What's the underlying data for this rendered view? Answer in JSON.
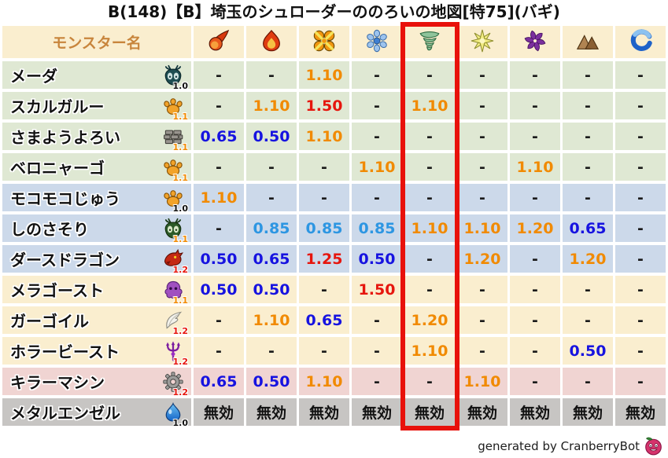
{
  "title": "B(148)【B】埼玉のシュローダーののろいの地図[特75](バギ)",
  "footer": {
    "text": "generated by CranberryBot",
    "icon": "cranberry-icon"
  },
  "colors": {
    "header_bg": "#faeecf",
    "header_text": "#c8853c",
    "row_green": "#dfe8d3",
    "row_blue": "#ccd9ea",
    "row_cream": "#faeecf",
    "row_pink": "#f0d4d2",
    "row_gray": "#c7c5c3",
    "value_dash": "#1a1a1a",
    "value_down": "#1713e0",
    "value_down_slight": "#2d96e2",
    "value_up": "#f18a00",
    "value_up_strong": "#e6160e",
    "immune": "#111111",
    "highlight_box": "#e8110b",
    "mult_10": "#111111",
    "mult_11": "#f18a00",
    "mult_12": "#e6160e"
  },
  "table": {
    "name_header": "モンスター名",
    "immune_label": "無効",
    "columns": [
      {
        "id": "fireball",
        "icon": "fireball-icon",
        "highlighted": false
      },
      {
        "id": "flame",
        "icon": "flame-icon",
        "highlighted": false
      },
      {
        "id": "explosion",
        "icon": "explosion-icon",
        "highlighted": false
      },
      {
        "id": "snowflake",
        "icon": "snowflake-icon",
        "highlighted": false
      },
      {
        "id": "tornado",
        "icon": "tornado-icon",
        "highlighted": true
      },
      {
        "id": "sparkle",
        "icon": "sparkle-icon",
        "highlighted": false
      },
      {
        "id": "pinwheel",
        "icon": "pinwheel-icon",
        "highlighted": false
      },
      {
        "id": "mountain",
        "icon": "mountain-icon",
        "highlighted": false
      },
      {
        "id": "wave",
        "icon": "wave-icon",
        "highlighted": false
      }
    ],
    "rows": [
      {
        "name": "メーダ",
        "icon": "meda-bug-icon",
        "multiplier": "1.0",
        "group": "green",
        "values": [
          "-",
          "-",
          "1.10",
          "-",
          "-",
          "-",
          "-",
          "-",
          "-"
        ]
      },
      {
        "name": "スカルガルー",
        "icon": "paw-icon",
        "multiplier": "1.1",
        "group": "green",
        "values": [
          "-",
          "1.10",
          "1.50",
          "-",
          "1.10",
          "-",
          "-",
          "-",
          "-"
        ]
      },
      {
        "name": "さまようよろい",
        "icon": "brick-icon",
        "multiplier": "1.1",
        "group": "green",
        "values": [
          "0.65",
          "0.50",
          "1.10",
          "-",
          "-",
          "-",
          "-",
          "-",
          "-"
        ]
      },
      {
        "name": "ベロニャーゴ",
        "icon": "paw-icon",
        "multiplier": "1.1",
        "group": "green",
        "values": [
          "-",
          "-",
          "-",
          "1.10",
          "-",
          "-",
          "1.10",
          "-",
          "-"
        ]
      },
      {
        "name": "モコモコじゅう",
        "icon": "paw-icon",
        "multiplier": "1.0",
        "group": "blue",
        "values": [
          "1.10",
          "-",
          "-",
          "-",
          "-",
          "-",
          "-",
          "-",
          "-"
        ]
      },
      {
        "name": "しのさそり",
        "icon": "scorpion-bug-icon",
        "multiplier": "1.1",
        "group": "blue",
        "values": [
          "-",
          "0.85",
          "0.85",
          "0.85",
          "1.10",
          "1.10",
          "1.20",
          "0.65",
          "-"
        ]
      },
      {
        "name": "ダースドラゴン",
        "icon": "dragon-icon",
        "multiplier": "1.2",
        "group": "blue",
        "values": [
          "0.50",
          "0.65",
          "1.25",
          "0.50",
          "-",
          "1.20",
          "-",
          "1.20",
          "-"
        ]
      },
      {
        "name": "メラゴースト",
        "icon": "ghost-icon",
        "multiplier": "1.1",
        "group": "cream",
        "values": [
          "0.50",
          "0.50",
          "-",
          "1.50",
          "-",
          "-",
          "-",
          "-",
          "-"
        ]
      },
      {
        "name": "ガーゴイル",
        "icon": "wing-icon",
        "multiplier": "1.2",
        "group": "cream",
        "values": [
          "-",
          "1.10",
          "0.65",
          "-",
          "1.20",
          "-",
          "-",
          "-",
          "-"
        ]
      },
      {
        "name": "ホラービースト",
        "icon": "trident-icon",
        "multiplier": "1.2",
        "group": "cream",
        "values": [
          "-",
          "-",
          "-",
          "-",
          "1.10",
          "-",
          "-",
          "0.50",
          "-"
        ]
      },
      {
        "name": "キラーマシン",
        "icon": "gear-icon",
        "multiplier": "1.2",
        "group": "pink",
        "values": [
          "0.65",
          "0.50",
          "1.10",
          "-",
          "-",
          "1.10",
          "-",
          "-",
          "-"
        ]
      },
      {
        "name": "メタルエンゼル",
        "icon": "slime-icon",
        "multiplier": "1.0",
        "group": "gray",
        "values": [
          "無効",
          "無効",
          "無効",
          "無効",
          "無効",
          "無効",
          "無効",
          "無効",
          "無効"
        ]
      }
    ]
  }
}
